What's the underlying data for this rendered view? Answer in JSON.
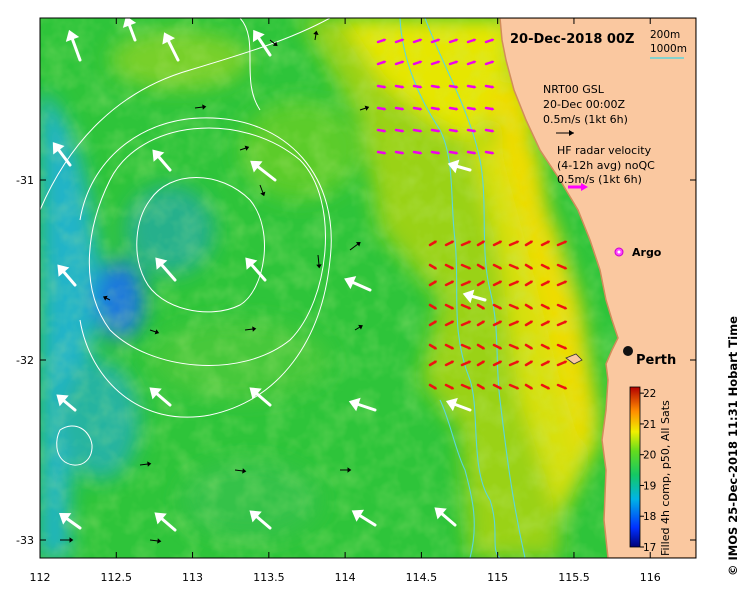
{
  "title": "20-Dec-2018 00Z",
  "depth_legend": {
    "contour_1": "200m",
    "contour_2": "1000m",
    "contour_2_color": "#66d9d9"
  },
  "gsl_legend": {
    "line1": "NRT00 GSL",
    "line2": "20-Dec 00:00Z",
    "line3": "0.5m/s (1kt 6h)",
    "arrow_color": "#000000"
  },
  "hf_legend": {
    "line1": "HF radar velocity",
    "line2": "(4-12h avg) noQC",
    "line3": "0.5m/s (1kt 6h)",
    "arrow_color": "#ff00ff"
  },
  "argo": {
    "label": "Argo",
    "lon": 115.88,
    "lat": -31.47,
    "color": "#ff44ff"
  },
  "city": {
    "label": "Perth",
    "lon": 115.86,
    "lat": -31.95
  },
  "x_axis": {
    "min": 112,
    "max": 116.3,
    "ticks": [
      "112",
      "112.5",
      "113",
      "113.5",
      "114",
      "114.5",
      "115",
      "115.5",
      "116"
    ]
  },
  "y_axis": {
    "min": -33.1,
    "max": -30.1,
    "ticks": [
      "-31",
      "-32",
      "-33"
    ]
  },
  "colorbar": {
    "min": 17,
    "max": 22.2,
    "ticks": [
      "22",
      "21",
      "20",
      "19",
      "18",
      "17"
    ],
    "label": "Filled 4h comp, p50, All Sats"
  },
  "credit": "© IMOS 25-Dec-2018 11:31 Hobart Time",
  "colors": {
    "land": "#fac8a0",
    "coast": "#e8a070",
    "hf_arrow": "#ee1111",
    "hf_arrow_north": "#ee00ee",
    "altimetry_arrow": "#ffffff",
    "ssh_contour": "#ffffff"
  }
}
